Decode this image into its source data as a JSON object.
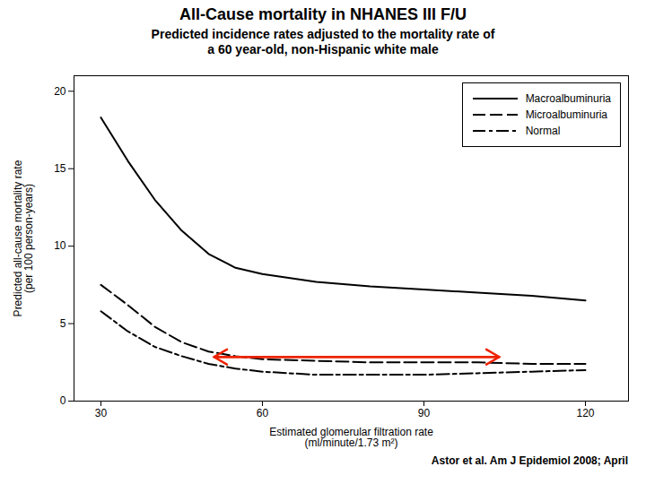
{
  "chart_data": {
    "type": "line",
    "title": "All-Cause mortality in NHANES III F/U",
    "subtitle": "Predicted incidence rates adjusted to the mortality rate of\na 60 year‑old, non-Hispanic white male",
    "x_label": "Estimated glomerular filtration rate\n(ml/minute/1.73 m²)",
    "y_label": "Predicted all-cause mortality rate\n(per 100 person-years)",
    "caption": "Astor et al. Am J Epidemiol 2008; April",
    "x": [
      30,
      35,
      40,
      45,
      50,
      55,
      60,
      70,
      80,
      90,
      100,
      110,
      120
    ],
    "series": [
      {
        "name": "Macroalbuminuria",
        "color": "#000000",
        "line_style": "solid",
        "values": [
          18.3,
          15.5,
          13.0,
          11.0,
          9.5,
          8.6,
          8.2,
          7.7,
          7.4,
          7.2,
          7.0,
          6.8,
          6.5
        ]
      },
      {
        "name": "Microalbuminuria",
        "color": "#000000",
        "line_style": "dashed",
        "values": [
          7.5,
          6.2,
          4.8,
          3.8,
          3.2,
          2.9,
          2.7,
          2.6,
          2.5,
          2.5,
          2.5,
          2.4,
          2.4
        ]
      },
      {
        "name": "Normal",
        "color": "#000000",
        "line_style": "dashdot",
        "values": [
          5.8,
          4.5,
          3.5,
          2.9,
          2.4,
          2.1,
          1.9,
          1.7,
          1.7,
          1.7,
          1.8,
          1.9,
          2.0
        ]
      }
    ],
    "xlim": [
      25,
      128
    ],
    "ylim": [
      0,
      21
    ],
    "xticks": [
      30,
      60,
      90,
      120
    ],
    "yticks": [
      0,
      5,
      10,
      15,
      20
    ],
    "grid": false,
    "legend": "upper right",
    "annotations": [
      {
        "type": "arrow",
        "x_start": 51,
        "x_end": 104,
        "y": 2.85,
        "color": "#EE2200"
      }
    ]
  }
}
